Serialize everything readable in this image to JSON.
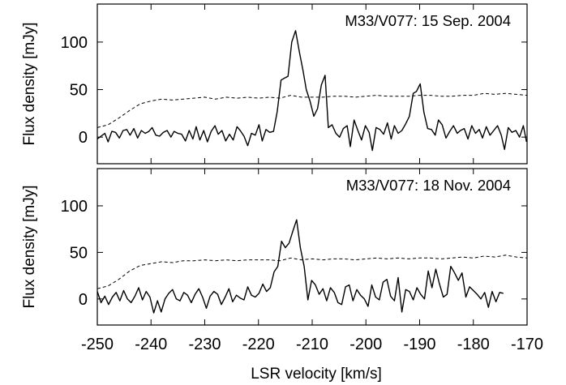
{
  "colors": {
    "frame": "#000000",
    "signal": "#000000",
    "noise": "#000000",
    "background": "#ffffff"
  },
  "chart_data": [
    {
      "type": "line",
      "title": "M33/V077: 15 Sep. 2004",
      "xlabel": "LSR velocity [km/s]",
      "ylabel": "Flux density [mJy]",
      "xlim": [
        -250,
        -170
      ],
      "ylim": [
        -28,
        140
      ],
      "xticks": [
        -250,
        -240,
        -230,
        -220,
        -210,
        -200,
        -190,
        -180,
        -170
      ],
      "yticks": [
        0,
        50,
        100
      ],
      "xtick_labels": [
        "-250",
        "-240",
        "-230",
        "-220",
        "-210",
        "-200",
        "-190",
        "-180",
        "-170"
      ],
      "ytick_labels": [
        "0",
        "50",
        "100"
      ],
      "grid": false,
      "legend": "none",
      "series": [
        {
          "style": "solid",
          "x": [
            -250,
            -249.3,
            -248.6,
            -248,
            -247.3,
            -246.6,
            -245.9,
            -245.2,
            -244.5,
            -243.9,
            -243.2,
            -242.5,
            -241.8,
            -241.1,
            -240.4,
            -239.8,
            -239.1,
            -238.4,
            -237.7,
            -237,
            -236.3,
            -235.7,
            -235,
            -234.3,
            -233.6,
            -232.9,
            -232.2,
            -231.6,
            -230.9,
            -230.2,
            -229.5,
            -228.8,
            -228.1,
            -227.5,
            -226.8,
            -226.1,
            -225.4,
            -224.7,
            -224,
            -223.4,
            -222.7,
            -222,
            -221.3,
            -220.6,
            -219.9,
            -219.3,
            -218.6,
            -217.9,
            -217.2,
            -216.5,
            -215.8,
            -215.2,
            -214.5,
            -213.8,
            -213.1,
            -212.4,
            -211.7,
            -211.1,
            -210.4,
            -209.7,
            -209,
            -208.3,
            -207.6,
            -207,
            -206.3,
            -205.6,
            -204.9,
            -204.2,
            -203.5,
            -202.9,
            -202.2,
            -201.5,
            -200.8,
            -200.1,
            -199.4,
            -198.8,
            -198.1,
            -197.4,
            -196.7,
            -196,
            -195.3,
            -194.7,
            -194,
            -193.3,
            -192.6,
            -191.9,
            -191.2,
            -190.6,
            -189.9,
            -189.2,
            -188.5,
            -187.8,
            -187.1,
            -186.5,
            -185.8,
            -185.1,
            -184.4,
            -183.7,
            -183,
            -182.4,
            -181.7,
            -181,
            -180.3,
            -179.6,
            -178.9,
            -178.3,
            -177.6,
            -176.9,
            -176.2,
            -175.5,
            -174.8,
            -174.2,
            -173.5,
            -172.8,
            -172.1,
            -171.4,
            -170.7,
            -170.1
          ],
          "y": [
            -2,
            1,
            4,
            -5,
            6,
            5,
            -1,
            7,
            8,
            2,
            9,
            -1,
            7,
            4,
            6,
            10,
            2,
            1,
            5,
            7,
            0,
            6,
            4,
            3,
            -4,
            7,
            -2,
            11,
            -3,
            7,
            -5,
            6,
            12,
            3,
            7,
            -4,
            3,
            -3,
            11,
            7,
            1,
            -9,
            4,
            2,
            13,
            -4,
            8,
            5,
            6,
            27,
            60,
            62,
            64,
            100,
            112,
            90,
            70,
            50,
            38,
            22,
            30,
            55,
            65,
            10,
            13,
            4,
            0,
            9,
            12,
            -10,
            18,
            7,
            -3,
            12,
            5,
            -14,
            10,
            8,
            3,
            15,
            -2,
            12,
            4,
            7,
            14,
            22,
            46,
            48,
            56,
            26,
            9,
            8,
            2,
            18,
            13,
            -1,
            6,
            12,
            4,
            7,
            9,
            -2,
            12,
            4,
            8,
            -1,
            11,
            2,
            7,
            12,
            2,
            -13,
            10,
            5,
            7,
            0,
            12,
            -5
          ],
          "series_name": ""
        },
        {
          "style": "dashed",
          "x": [
            -250,
            -248,
            -246,
            -244,
            -242,
            -240,
            -238,
            -236,
            -234,
            -232,
            -230,
            -228,
            -226,
            -224,
            -222,
            -220,
            -218,
            -216,
            -214,
            -212,
            -210,
            -208,
            -206,
            -204,
            -202,
            -200,
            -198,
            -196,
            -194,
            -192,
            -190,
            -188,
            -186,
            -184,
            -182,
            -180,
            -178,
            -176,
            -174,
            -172,
            -170
          ],
          "y": [
            10,
            13,
            20,
            28,
            35,
            38,
            40,
            39,
            40,
            41,
            42,
            40,
            42,
            41,
            42,
            41,
            42,
            41,
            44,
            42,
            42,
            42,
            43,
            43,
            42,
            43,
            44,
            43,
            43,
            43,
            44,
            44,
            43,
            43,
            44,
            44,
            46,
            45,
            46,
            45,
            44
          ],
          "series_name": ""
        }
      ]
    },
    {
      "type": "line",
      "title": "M33/V077: 18 Nov. 2004",
      "xlabel": "LSR velocity [km/s]",
      "ylabel": "Flux density [mJy]",
      "xlim": [
        -250,
        -170
      ],
      "ylim": [
        -28,
        140
      ],
      "xticks": [
        -250,
        -240,
        -230,
        -220,
        -210,
        -200,
        -190,
        -180,
        -170
      ],
      "yticks": [
        0,
        50,
        100
      ],
      "xtick_labels": [
        "-250",
        "-240",
        "-230",
        "-220",
        "-210",
        "-200",
        "-190",
        "-180",
        "-170"
      ],
      "ytick_labels": [
        "0",
        "50",
        "100"
      ],
      "grid": false,
      "legend": "none",
      "series": [
        {
          "style": "solid",
          "x": [
            -250,
            -249.3,
            -248.6,
            -247.9,
            -247.2,
            -246.5,
            -245.8,
            -245.1,
            -244.4,
            -243.7,
            -243,
            -242.3,
            -241.6,
            -240.9,
            -240.2,
            -239.5,
            -238.8,
            -238.1,
            -237.4,
            -236.7,
            -236,
            -235.3,
            -234.6,
            -233.9,
            -233.2,
            -232.5,
            -231.8,
            -231.1,
            -230.4,
            -229.7,
            -229,
            -228.3,
            -227.6,
            -226.9,
            -226.2,
            -225.5,
            -224.8,
            -224.1,
            -223.4,
            -222.7,
            -222,
            -221.3,
            -220.6,
            -219.9,
            -219.2,
            -218.5,
            -217.8,
            -217.1,
            -216.4,
            -215.7,
            -215,
            -214.3,
            -213.6,
            -212.9,
            -212.2,
            -211.5,
            -210.8,
            -210.1,
            -209.4,
            -208.7,
            -208,
            -207.3,
            -206.6,
            -205.9,
            -205.2,
            -204.5,
            -203.8,
            -203.1,
            -202.4,
            -201.7,
            -201,
            -200.3,
            -199.6,
            -198.9,
            -198.2,
            -197.5,
            -196.8,
            -196.1,
            -195.4,
            -194.7,
            -194,
            -193.3,
            -192.6,
            -191.9,
            -191.2,
            -190.5,
            -189.8,
            -189.1,
            -188.4,
            -187.7,
            -187,
            -186.3,
            -185.6,
            -184.9,
            -184.2,
            -183.5,
            -182.8,
            -182.1,
            -181.4,
            -180.7,
            -180,
            -179.3,
            -178.6,
            -177.9,
            -177.2,
            -176.5,
            -175.8,
            -175.1,
            -174.4
          ],
          "y": [
            8,
            -4,
            3,
            -6,
            2,
            7,
            -2,
            9,
            0,
            -4,
            3,
            12,
            -1,
            8,
            2,
            -15,
            -2,
            -14,
            0,
            6,
            10,
            0,
            -2,
            7,
            4,
            -4,
            5,
            11,
            2,
            -10,
            3,
            8,
            5,
            -6,
            2,
            11,
            -3,
            4,
            1,
            -1,
            13,
            4,
            2,
            6,
            16,
            8,
            12,
            29,
            35,
            62,
            55,
            60,
            73,
            85,
            55,
            35,
            -1,
            20,
            15,
            5,
            11,
            -2,
            12,
            7,
            -4,
            -6,
            13,
            15,
            -2,
            10,
            4,
            0,
            -8,
            15,
            2,
            -1,
            18,
            21,
            3,
            -2,
            23,
            -14,
            10,
            8,
            -1,
            12,
            5,
            0,
            30,
            12,
            32,
            16,
            2,
            5,
            35,
            28,
            20,
            28,
            2,
            13,
            9,
            5,
            0,
            7,
            -9,
            8,
            -3,
            7,
            6
          ],
          "series_name": ""
        },
        {
          "style": "dashed",
          "x": [
            -250,
            -248,
            -246,
            -244,
            -242,
            -240,
            -238,
            -236,
            -234,
            -232,
            -230,
            -228,
            -226,
            -224,
            -222,
            -220,
            -218,
            -216,
            -214,
            -212,
            -210,
            -208,
            -206,
            -204,
            -202,
            -200,
            -198,
            -196,
            -194,
            -192,
            -190,
            -188,
            -186,
            -184,
            -182,
            -180,
            -178,
            -176,
            -174,
            -172,
            -170
          ],
          "y": [
            11,
            14,
            21,
            30,
            36,
            38,
            40,
            39,
            41,
            41,
            42,
            41,
            42,
            41,
            42,
            42,
            42,
            41,
            44,
            42,
            43,
            42,
            43,
            43,
            42,
            43,
            44,
            43,
            44,
            43,
            44,
            44,
            43,
            44,
            45,
            44,
            46,
            45,
            47,
            45,
            44
          ],
          "series_name": ""
        }
      ]
    }
  ]
}
